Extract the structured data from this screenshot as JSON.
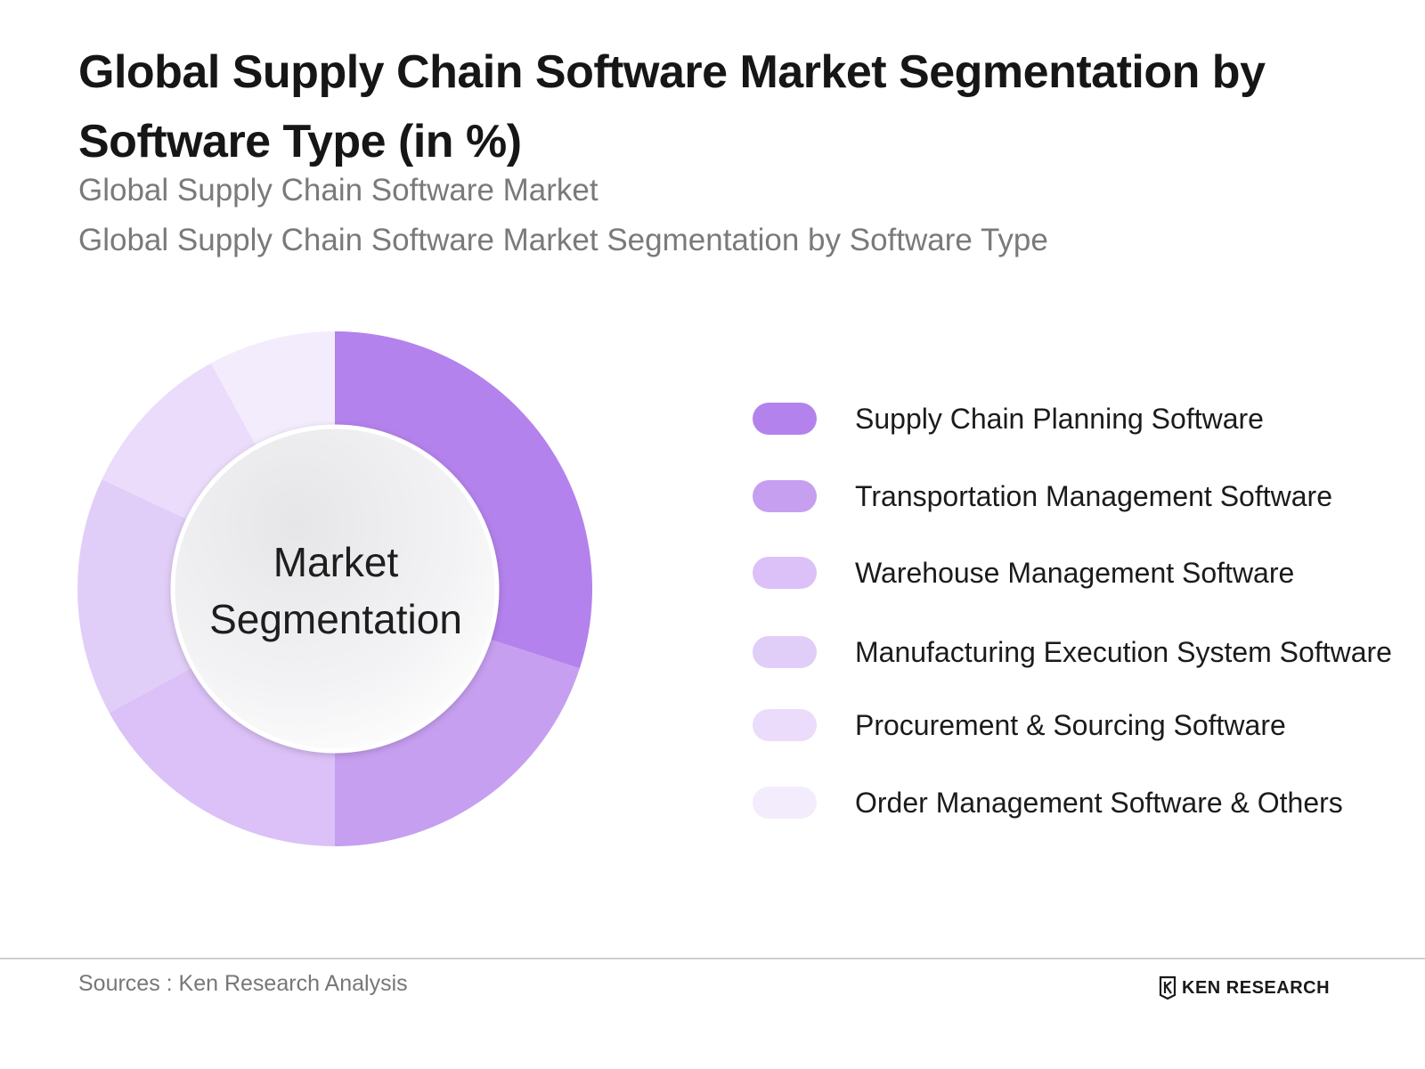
{
  "title": "Global Supply Chain Software Market Segmentation by Software Type (in %)",
  "subtitle_1": "Global Supply Chain Software Market",
  "subtitle_2": "Global Supply Chain Software Market Segmentation by Software Type",
  "center_label": {
    "line_1": "Market",
    "line_2": "Segmentation"
  },
  "chart_data": {
    "type": "pie",
    "variant": "donut",
    "title": "Global Supply Chain Software Market Segmentation by Software Type (in %)",
    "legend_position": "right",
    "categories": [
      "Supply Chain Planning Software",
      "Transportation Management Software",
      "Warehouse Management Software",
      "Manufacturing Execution System Software",
      "Procurement & Sourcing Software",
      "Order Management Software & Others"
    ],
    "values": [
      30,
      20,
      17,
      15,
      10,
      8
    ],
    "colors": [
      "#b382ec",
      "#c69ff0",
      "#dbc1f7",
      "#e1cef8",
      "#ebdcfb",
      "#f3ecfc"
    ]
  },
  "footer": {
    "sources": "Sources : Ken Research Analysis",
    "brand": "KEN RESEARCH",
    "brand_icon": "ken-research-logo"
  }
}
